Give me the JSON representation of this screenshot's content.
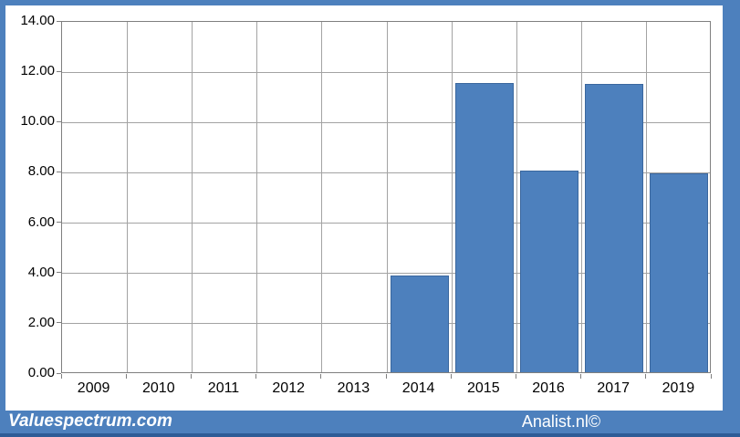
{
  "chart_data": {
    "type": "bar",
    "title": "",
    "xlabel": "",
    "ylabel": "",
    "categories": [
      "2009",
      "2010",
      "2011",
      "2012",
      "2013",
      "2014",
      "2015",
      "2016",
      "2017",
      "2019"
    ],
    "values": [
      null,
      null,
      null,
      null,
      null,
      3.85,
      11.5,
      8.0,
      11.45,
      7.9
    ],
    "ylim": [
      0,
      14
    ],
    "y_tick_step": 2,
    "y_tick_labels": [
      "0.00",
      "2.00",
      "4.00",
      "6.00",
      "8.00",
      "10.00",
      "12.00",
      "14.00"
    ],
    "grid": true,
    "legend_position": "none",
    "bar_fill_color": "#4d80bd",
    "bar_border_color": "#3a679e",
    "gridline_color": "#a3a3a3",
    "plot_border_color": "#7f7f7f",
    "tick_color": "#7f7f7f",
    "axis_text_color": "#000000"
  },
  "frame": {
    "color": "#4d80bd",
    "dark_edge_color": "#2e5c97"
  },
  "footer": {
    "left_text": "Valuespectrum.com",
    "right_text": "Analist.nl©",
    "bar_color": "#4d80bd",
    "text_color": "#ffffff"
  }
}
